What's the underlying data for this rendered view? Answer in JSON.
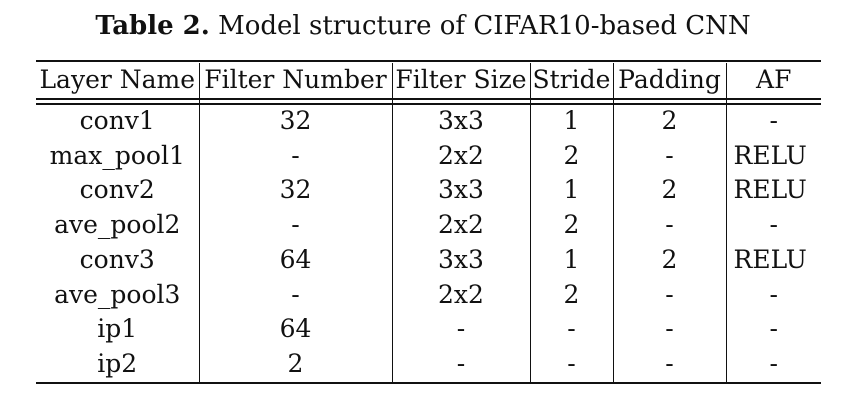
{
  "caption": {
    "label": "Table 2.",
    "text": "Model structure of CIFAR10-based CNN"
  },
  "table": {
    "headers": [
      "Layer Name",
      "Filter Number",
      "Filter Size",
      "Stride",
      "Padding",
      "AF"
    ],
    "rows": [
      [
        "conv1",
        "32",
        "3x3",
        "1",
        "2",
        "-"
      ],
      [
        "max_pool1",
        "-",
        "2x2",
        "2",
        "-",
        "RELU"
      ],
      [
        "conv2",
        "32",
        "3x3",
        "1",
        "2",
        "RELU"
      ],
      [
        "ave_pool2",
        "-",
        "2x2",
        "2",
        "-",
        "-"
      ],
      [
        "conv3",
        "64",
        "3x3",
        "1",
        "2",
        "RELU"
      ],
      [
        "ave_pool3",
        "-",
        "2x2",
        "2",
        "-",
        "-"
      ],
      [
        "ip1",
        "64",
        "-",
        "-",
        "-",
        "-"
      ],
      [
        "ip2",
        "2",
        "-",
        "-",
        "-",
        "-"
      ]
    ]
  }
}
